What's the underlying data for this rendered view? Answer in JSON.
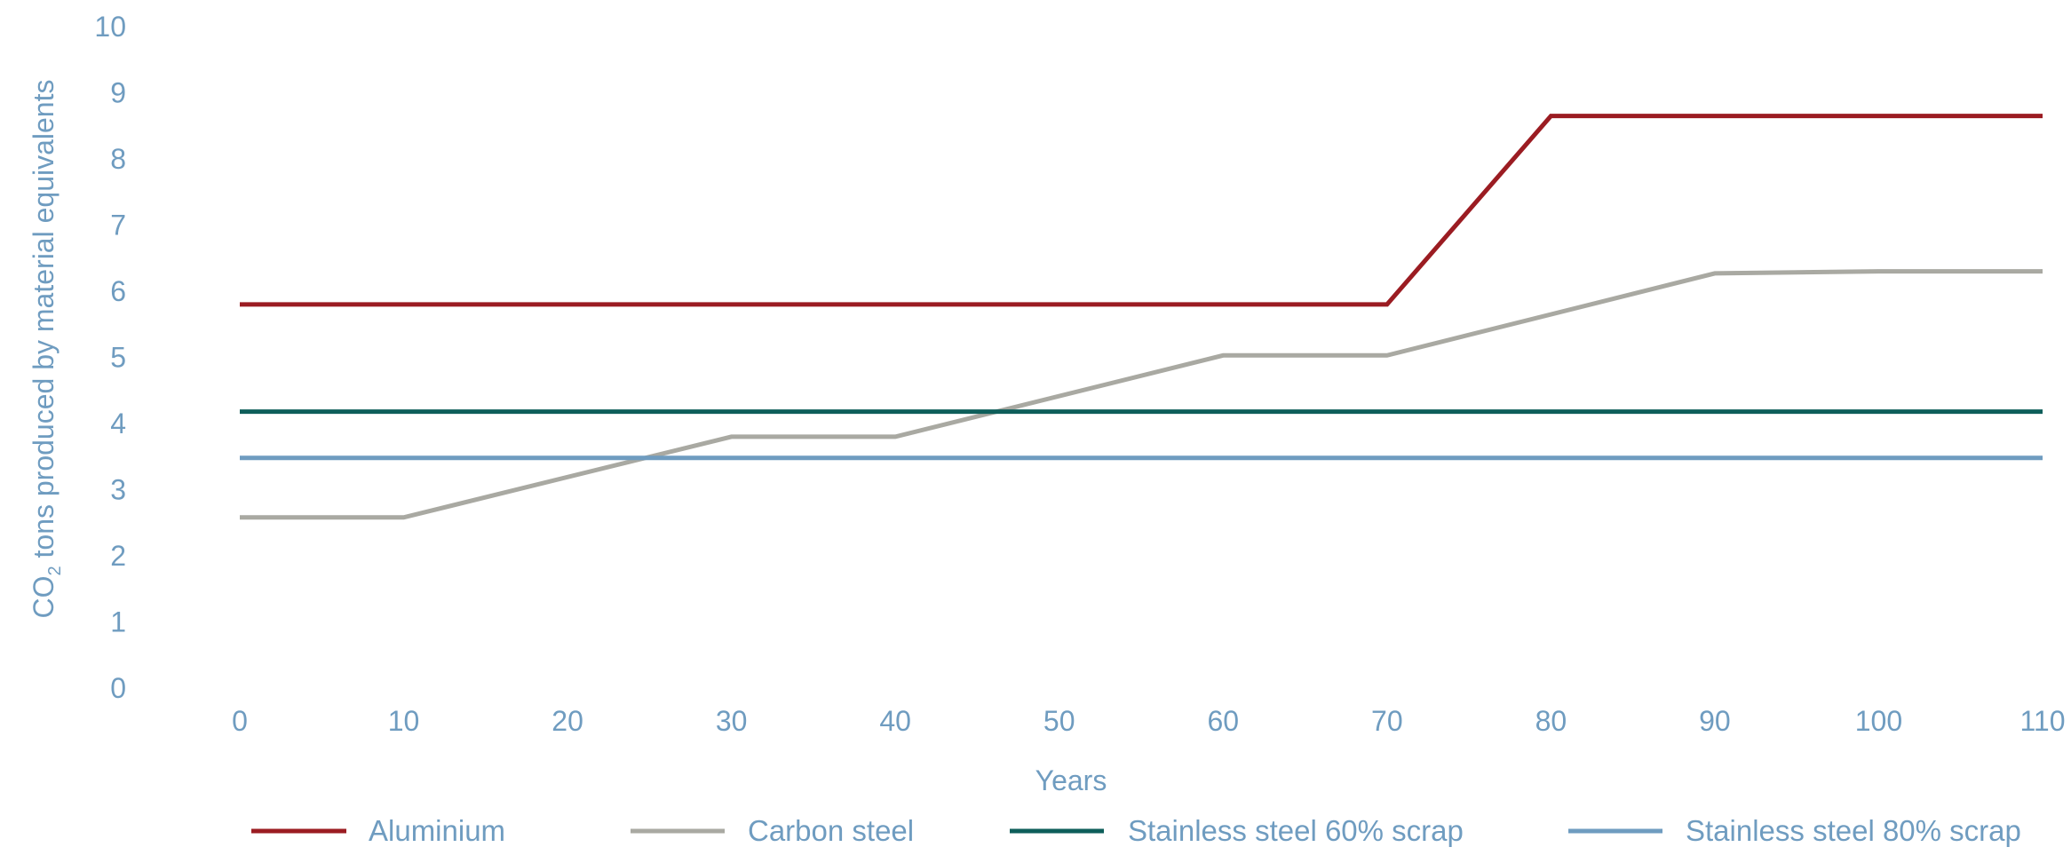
{
  "chart_data": {
    "type": "line",
    "title": "",
    "xlabel": "Years",
    "ylabel": {
      "prefix": "CO",
      "subscript": "2",
      "suffix": " tons produced by material equivalents"
    },
    "xlim": [
      0,
      110
    ],
    "ylim": [
      0,
      10
    ],
    "x_ticks": [
      0,
      10,
      20,
      30,
      40,
      50,
      60,
      70,
      80,
      90,
      100,
      110
    ],
    "y_ticks": [
      0,
      1,
      2,
      3,
      4,
      5,
      6,
      7,
      8,
      9,
      10
    ],
    "grid": false,
    "legend_position": "bottom",
    "series": [
      {
        "name": "Aluminium",
        "color": "#9b1c22",
        "points": [
          [
            0,
            5.8
          ],
          [
            70,
            5.8
          ],
          [
            80,
            8.65
          ],
          [
            110,
            8.65
          ]
        ]
      },
      {
        "name": "Carbon steel",
        "color": "#a9a9a2",
        "points": [
          [
            0,
            2.58
          ],
          [
            10,
            2.58
          ],
          [
            30,
            3.8
          ],
          [
            40,
            3.8
          ],
          [
            60,
            5.03
          ],
          [
            70,
            5.03
          ],
          [
            90,
            6.27
          ],
          [
            100,
            6.3
          ],
          [
            110,
            6.3
          ]
        ]
      },
      {
        "name": "Stainless steel 60% scrap",
        "color": "#0e5e5a",
        "points": [
          [
            0,
            4.18
          ],
          [
            110,
            4.18
          ]
        ]
      },
      {
        "name": "Stainless steel 80% scrap",
        "color": "#6f9cc0",
        "points": [
          [
            0,
            3.48
          ],
          [
            110,
            3.48
          ]
        ]
      }
    ],
    "axis_text_color": "#6f9cc0"
  }
}
